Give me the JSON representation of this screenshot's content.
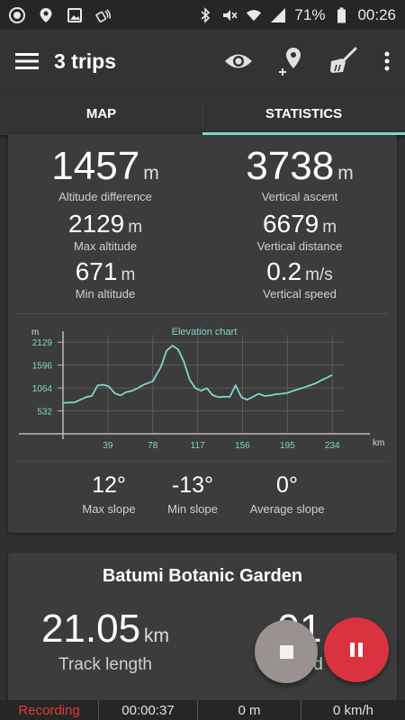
{
  "status_bar": {
    "battery": "71%",
    "time": "00:26"
  },
  "app_bar": {
    "title": "3 trips",
    "icons": [
      "menu-icon",
      "eye-icon",
      "add-location-icon",
      "broom-icon",
      "more-vert-icon"
    ]
  },
  "tabs": [
    {
      "label": "MAP",
      "active": false
    },
    {
      "label": "STATISTICS",
      "active": true
    }
  ],
  "altitude_stats": {
    "altitude_difference": {
      "value": "1457",
      "unit": "m",
      "label": "Altitude difference"
    },
    "vertical_ascent": {
      "value": "3738",
      "unit": "m",
      "label": "Vertical ascent"
    },
    "max_altitude": {
      "value": "2129",
      "unit": "m",
      "label": "Max altitude"
    },
    "vertical_distance": {
      "value": "6679",
      "unit": "m",
      "label": "Vertical distance"
    },
    "min_altitude": {
      "value": "671",
      "unit": "m",
      "label": "Min altitude"
    },
    "vertical_speed": {
      "value": "0.2",
      "unit": "m/s",
      "label": "Vertical speed"
    }
  },
  "chart_data": {
    "type": "line",
    "title": "Elevation chart",
    "xlabel": "km",
    "ylabel": "m",
    "y_ticks": [
      532,
      1064,
      1596,
      2129
    ],
    "x_ticks": [
      39,
      78,
      117,
      156,
      195,
      234
    ],
    "xlim": [
      0,
      244
    ],
    "ylim": [
      0,
      2300
    ],
    "grid": true,
    "line_color": "#7fd6cb",
    "series": [
      {
        "x": [
          0,
          10,
          15,
          20,
          25,
          30,
          35,
          40,
          45,
          50,
          55,
          60,
          65,
          70,
          78,
          85,
          90,
          95,
          100,
          105,
          110,
          115,
          120,
          125,
          130,
          135,
          140,
          145,
          150,
          155,
          160,
          165,
          170,
          175,
          180,
          185,
          190,
          195,
          200,
          205,
          210,
          215,
          220,
          225,
          230,
          234
        ],
        "y": [
          720,
          730,
          790,
          850,
          880,
          1120,
          1140,
          1100,
          940,
          890,
          970,
          1000,
          1060,
          1140,
          1220,
          1550,
          1930,
          2050,
          1960,
          1680,
          1260,
          1060,
          1000,
          1060,
          900,
          850,
          860,
          860,
          1130,
          850,
          790,
          860,
          930,
          880,
          890,
          920,
          930,
          950,
          1000,
          1040,
          1080,
          1130,
          1180,
          1250,
          1310,
          1370
        ]
      }
    ]
  },
  "slopes": {
    "max": {
      "value": "12°",
      "label": "Max slope"
    },
    "min": {
      "value": "-13°",
      "label": "Min slope"
    },
    "average": {
      "value": "0°",
      "label": "Average slope"
    }
  },
  "trip_card": {
    "name": "Batumi Botanic Garden",
    "track_length": {
      "value": "21.05",
      "unit": "km",
      "label": "Track length"
    },
    "partial_value": "91",
    "partial_label": "speed"
  },
  "bottom_bar": {
    "status": "Recording",
    "duration": "00:00:37",
    "distance": "0 m",
    "speed": "0 km/h"
  },
  "colors": {
    "accent": "#7fd6cb",
    "record": "#e53935",
    "pause_fab": "#d8333f",
    "stop_fab": "#9a9290"
  }
}
